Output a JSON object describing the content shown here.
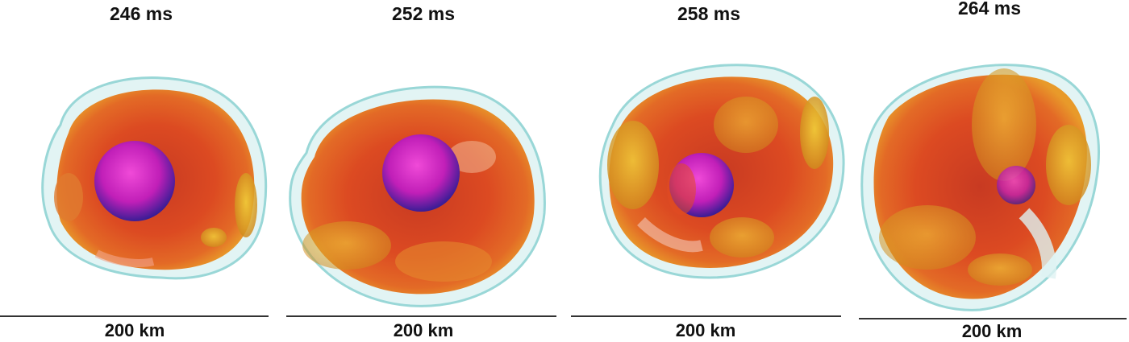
{
  "frames": [
    {
      "time": "246 ms",
      "scale": "200 km"
    },
    {
      "time": "252 ms",
      "scale": "200 km"
    },
    {
      "time": "258 ms",
      "scale": "200 km"
    },
    {
      "time": "264 ms",
      "scale": "200 km"
    }
  ],
  "colors": {
    "shock_surface": "#8fd3d3",
    "ejecta_core": "#d9401f",
    "ejecta_edge": "#e8c21e",
    "neutron_star": "#d61fc4",
    "neutron_star_shadow": "#3a1f9a"
  }
}
